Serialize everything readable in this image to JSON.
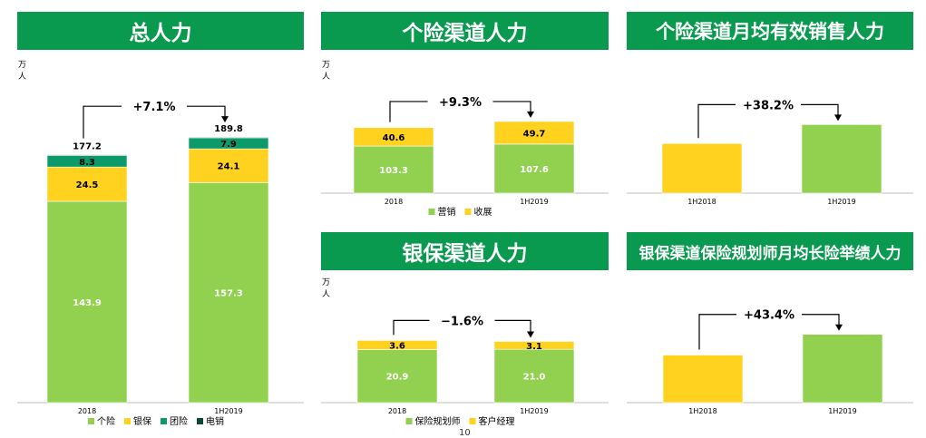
{
  "colors": {
    "header_bg": "#0a9a4f",
    "green": "#92d050",
    "yellow": "#ffd21f",
    "teal": "#0d9a6a",
    "darkgreen": "#0a4a2e"
  },
  "chart_data": [
    {
      "type": "bar",
      "stacked": true,
      "title": "总人力",
      "unit_label": "万人",
      "categories": [
        "2018",
        "1H2019"
      ],
      "series": [
        {
          "name": "个险",
          "color": "#92d050",
          "values": [
            143.9,
            157.3
          ],
          "labels": [
            "143.9",
            "157.3"
          ],
          "label_color": "#ffffff"
        },
        {
          "name": "银保",
          "color": "#ffd21f",
          "values": [
            24.5,
            24.1
          ],
          "labels": [
            "24.5",
            "24.1"
          ],
          "label_color": "#000000"
        },
        {
          "name": "团险",
          "color": "#0d9a6a",
          "values": [
            8.3,
            7.9
          ],
          "labels": [
            "8.3",
            "7.9"
          ],
          "label_color": "#000000"
        },
        {
          "name": "电销",
          "color": "#0a4a2e",
          "values": [
            0.5,
            0.5
          ],
          "labels": [
            "",
            ""
          ],
          "label_color": "#000000"
        }
      ],
      "totals": [
        "177.2",
        "189.8"
      ],
      "growth": "+7.1%",
      "ylim": [
        0,
        210
      ],
      "legend": "bottom"
    },
    {
      "type": "bar",
      "stacked": true,
      "title": "个险渠道人力",
      "unit_label": "万人",
      "categories": [
        "2018",
        "1H2019"
      ],
      "series": [
        {
          "name": "营销",
          "color": "#92d050",
          "values": [
            103.3,
            107.6
          ],
          "labels": [
            "103.3",
            "107.6"
          ],
          "label_color": "#ffffff"
        },
        {
          "name": "收展",
          "color": "#ffd21f",
          "values": [
            40.6,
            49.7
          ],
          "labels": [
            "40.6",
            "49.7"
          ],
          "label_color": "#000000"
        }
      ],
      "growth": "+9.3%",
      "ylim": [
        0,
        185
      ],
      "legend": "bottom"
    },
    {
      "type": "bar",
      "title": "个险渠道月均有效销售人力",
      "categories": [
        "1H2018",
        "1H2019"
      ],
      "series": [
        {
          "name": "",
          "colors": [
            "#ffd21f",
            "#92d050"
          ],
          "values": [
            100,
            138.2
          ]
        }
      ],
      "growth": "+38.2%",
      "ylim": [
        0,
        170
      ],
      "legend": "none"
    },
    {
      "type": "bar",
      "stacked": true,
      "title": "银保渠道人力",
      "unit_label": "万人",
      "categories": [
        "2018",
        "1H2019"
      ],
      "series": [
        {
          "name": "保险规划师",
          "color": "#92d050",
          "values": [
            20.9,
            21.0
          ],
          "labels": [
            "20.9",
            "21.0"
          ],
          "label_color": "#ffffff"
        },
        {
          "name": "客户经理",
          "color": "#ffd21f",
          "values": [
            3.6,
            3.1
          ],
          "labels": [
            "3.6",
            "3.1"
          ],
          "label_color": "#000000"
        }
      ],
      "growth": "−1.6%",
      "ylim": [
        0,
        30
      ],
      "legend": "bottom"
    },
    {
      "type": "bar",
      "title": "银保渠道保险规划师月均长险举绩人力",
      "categories": [
        "1H2018",
        "1H2019"
      ],
      "series": [
        {
          "name": "",
          "colors": [
            "#ffd21f",
            "#92d050"
          ],
          "values": [
            100,
            143.4
          ]
        }
      ],
      "growth": "+43.4%",
      "ylim": [
        0,
        160
      ],
      "legend": "none"
    }
  ],
  "page_number": "10"
}
